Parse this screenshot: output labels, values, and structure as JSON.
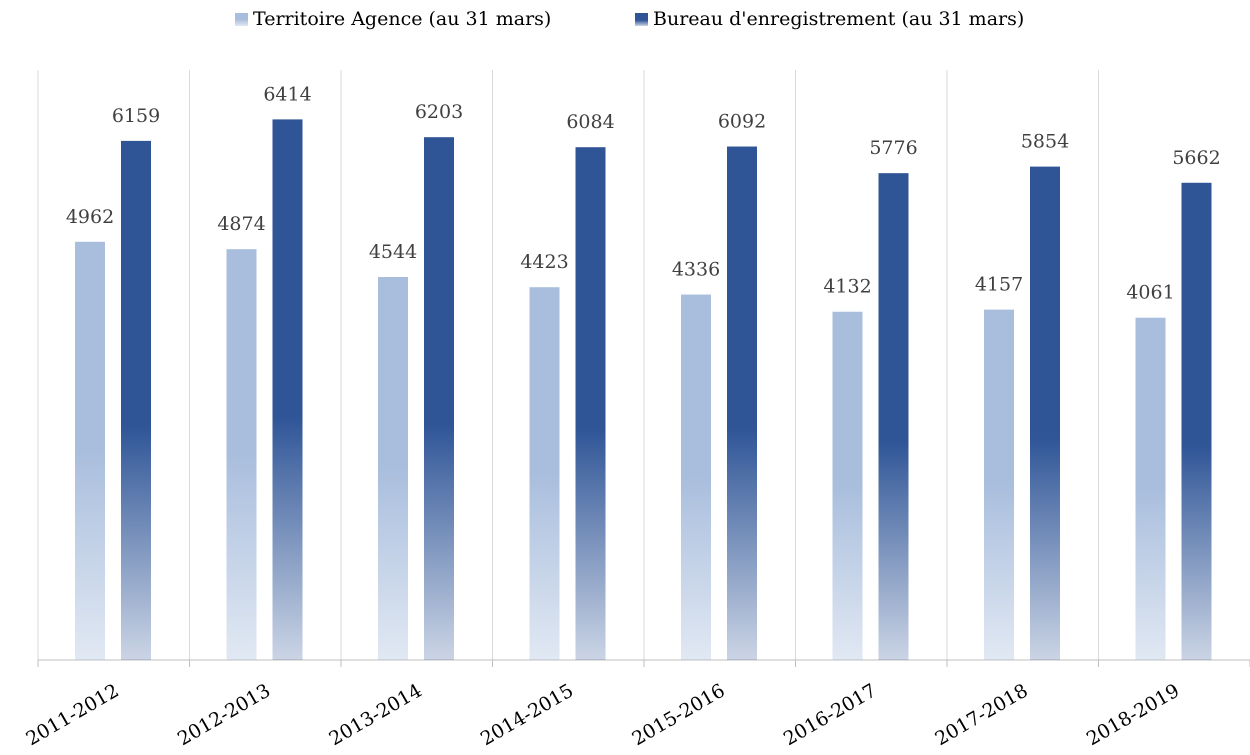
{
  "chart_data": {
    "type": "bar",
    "categories": [
      "2011-2012",
      "2012-2013",
      "2013-2014",
      "2014-2015",
      "2015-2016",
      "2016-2017",
      "2017-2018",
      "2018-2019"
    ],
    "series": [
      {
        "name": "Territoire Agence (au 31 mars)",
        "color": "#a9bedd",
        "values": [
          4962,
          4874,
          4544,
          4423,
          4336,
          4132,
          4157,
          4061
        ]
      },
      {
        "name": "Bureau d'enregistrement (au 31 mars)",
        "color": "#2f5597",
        "values": [
          6159,
          6414,
          6203,
          6084,
          6092,
          5776,
          5854,
          5662
        ]
      }
    ],
    "ylim": [
      0,
      7000
    ],
    "legend": "top"
  }
}
